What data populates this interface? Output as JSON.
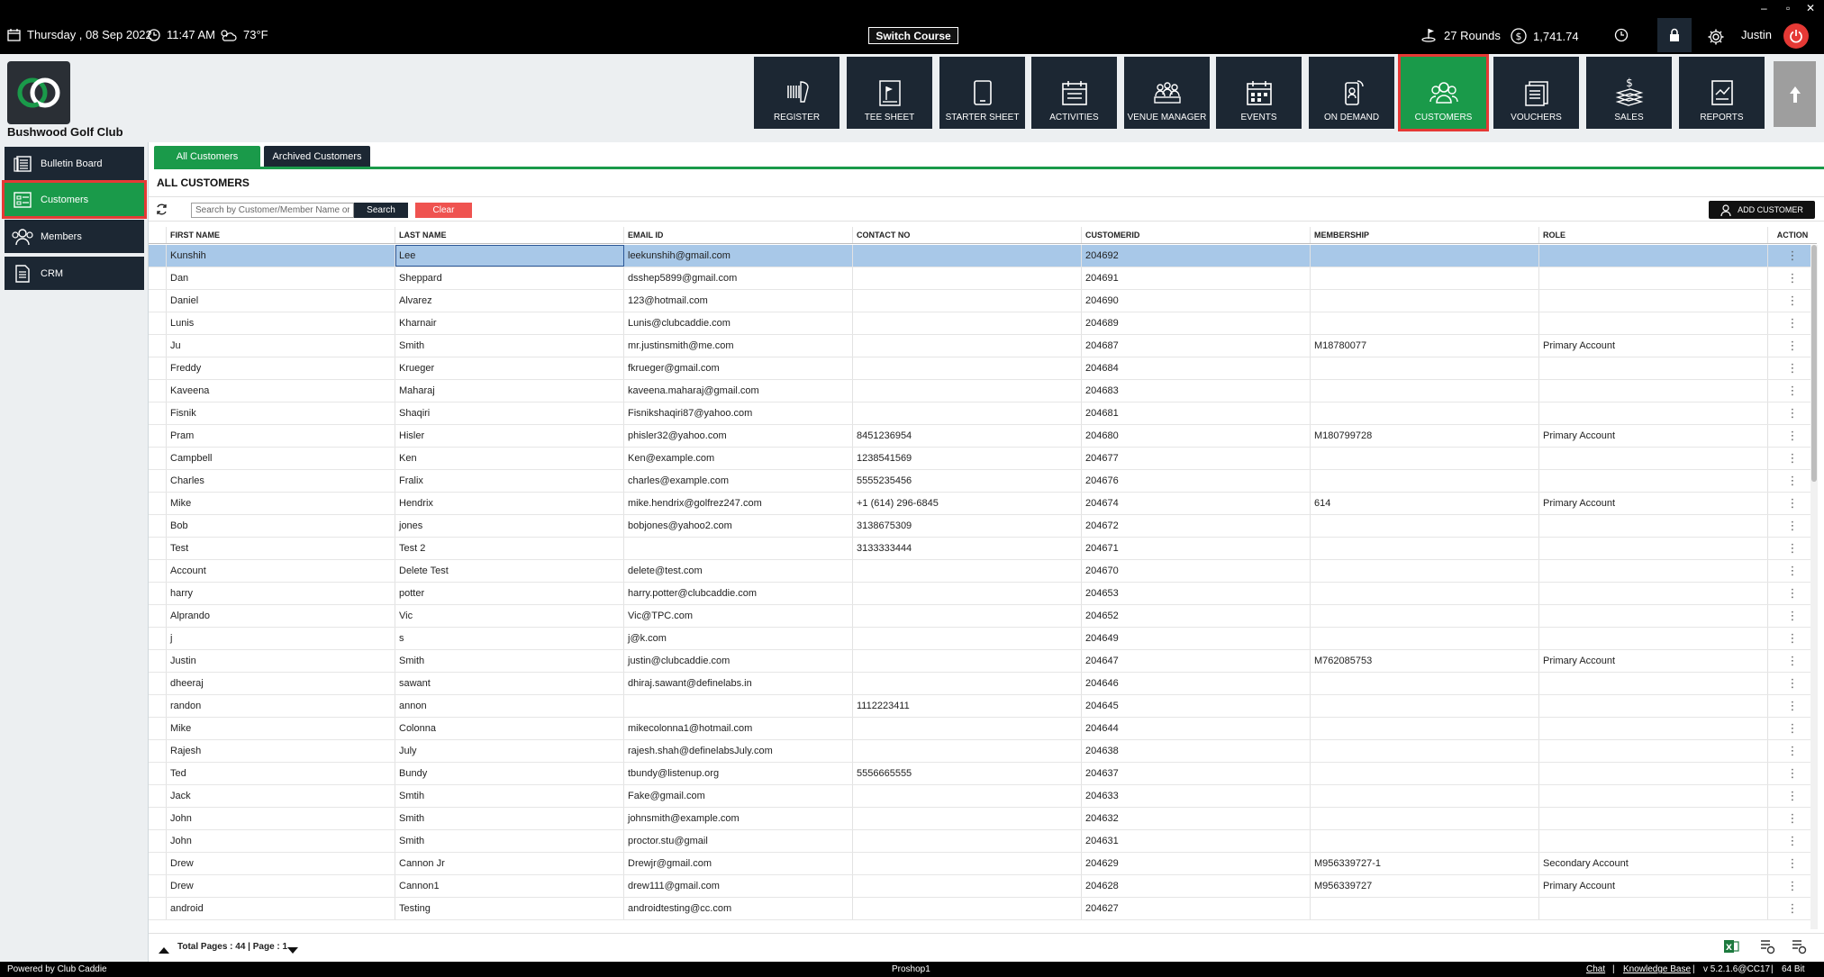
{
  "topbar": {
    "date": "Thursday ,  08 Sep 2022",
    "time": "11:47 AM",
    "weather": "73°F",
    "switch_course": "Switch Course",
    "rounds": "27 Rounds",
    "balance": "1,741.74",
    "user": "Justin",
    "window_controls": [
      "–",
      "▫",
      "✕"
    ]
  },
  "header": {
    "club_name": "Bushwood Golf Club",
    "nav": [
      {
        "label": "REGISTER",
        "icon": "barcode-scanner-icon"
      },
      {
        "label": "TEE SHEET",
        "icon": "tee-sheet-icon"
      },
      {
        "label": "STARTER SHEET",
        "icon": "tablet-icon"
      },
      {
        "label": "ACTIVITIES",
        "icon": "calendar-icon"
      },
      {
        "label": "VENUE MANAGER",
        "icon": "venue-icon"
      },
      {
        "label": "EVENTS",
        "icon": "events-calendar-icon"
      },
      {
        "label": "ON DEMAND",
        "icon": "mobile-icon"
      },
      {
        "label": "CUSTOMERS",
        "icon": "customers-icon"
      },
      {
        "label": "VOUCHERS",
        "icon": "vouchers-icon"
      },
      {
        "label": "SALES",
        "icon": "sales-icon"
      },
      {
        "label": "REPORTS",
        "icon": "reports-icon"
      }
    ],
    "active_nav": "CUSTOMERS"
  },
  "sidebar": {
    "items": [
      {
        "label": "Bulletin Board",
        "icon": "bulletin-icon"
      },
      {
        "label": "Customers",
        "icon": "customers-list-icon"
      },
      {
        "label": "Members",
        "icon": "members-icon"
      },
      {
        "label": "CRM",
        "icon": "crm-icon"
      }
    ],
    "active": "Customers"
  },
  "main": {
    "tabs": [
      "All Customers",
      "Archived Customers"
    ],
    "section_title": "ALL CUSTOMERS",
    "search_placeholder": "Search by Customer/Member Name or Id",
    "search_label": "Search",
    "clear_label": "Clear",
    "add_customer_label": "ADD CUSTOMER",
    "columns": [
      "FIRST NAME",
      "LAST NAME",
      "EMAIL ID",
      "CONTACT NO",
      "CUSTOMERID",
      "MEMBERSHIP",
      "ROLE",
      "ACTION"
    ],
    "rows": [
      [
        "Kunshih",
        "Lee",
        "leekunshih@gmail.com",
        "",
        "204692",
        "",
        ""
      ],
      [
        "Dan",
        "Sheppard",
        "dsshep5899@gmail.com",
        "",
        "204691",
        "",
        ""
      ],
      [
        "Daniel",
        "Alvarez",
        "123@hotmail.com",
        "",
        "204690",
        "",
        ""
      ],
      [
        "Lunis",
        "Kharnair",
        "Lunis@clubcaddie.com",
        "",
        "204689",
        "",
        ""
      ],
      [
        "Ju",
        "Smith",
        "mr.justinsmith@me.com",
        "",
        "204687",
        "M18780077",
        "Primary Account"
      ],
      [
        "Freddy",
        "Krueger",
        "fkrueger@gmail.com",
        "",
        "204684",
        "",
        ""
      ],
      [
        "Kaveena",
        "Maharaj",
        "kaveena.maharaj@gmail.com",
        "",
        "204683",
        "",
        ""
      ],
      [
        "Fisnik",
        "Shaqiri",
        "Fisnikshaqiri87@yahoo.com",
        "",
        "204681",
        "",
        ""
      ],
      [
        "Pram",
        "Hisler",
        "phisler32@yahoo.com",
        "8451236954",
        "204680",
        "M180799728",
        "Primary Account"
      ],
      [
        "Campbell",
        "Ken",
        "Ken@example.com",
        "1238541569",
        "204677",
        "",
        ""
      ],
      [
        "Charles",
        "Fralix",
        "charles@example.com",
        "5555235456",
        "204676",
        "",
        ""
      ],
      [
        "Mike",
        "Hendrix",
        "mike.hendrix@golfrez247.com",
        "+1 (614) 296-6845",
        "204674",
        "614",
        "Primary Account"
      ],
      [
        "Bob",
        "jones",
        "bobjones@yahoo2.com",
        "3138675309",
        "204672",
        "",
        ""
      ],
      [
        "Test",
        "Test 2",
        "",
        "3133333444",
        "204671",
        "",
        ""
      ],
      [
        "Account",
        "Delete Test",
        "delete@test.com",
        "",
        "204670",
        "",
        ""
      ],
      [
        "harry",
        "potter",
        "harry.potter@clubcaddie.com",
        "",
        "204653",
        "",
        ""
      ],
      [
        "Alprando",
        "Vic",
        "Vic@TPC.com",
        "",
        "204652",
        "",
        ""
      ],
      [
        "j",
        "s",
        "j@k.com",
        "",
        "204649",
        "",
        ""
      ],
      [
        "Justin",
        "Smith",
        "justin@clubcaddie.com",
        "",
        "204647",
        "M762085753",
        "Primary Account"
      ],
      [
        "dheeraj",
        "sawant",
        "dhiraj.sawant@definelabs.in",
        "",
        "204646",
        "",
        ""
      ],
      [
        "randon",
        "annon",
        "",
        "1112223411",
        "204645",
        "",
        ""
      ],
      [
        "Mike",
        "Colonna",
        "mikecolonna1@hotmail.com",
        "",
        "204644",
        "",
        ""
      ],
      [
        "Rajesh",
        "July",
        "rajesh.shah@definelabsJuly.com",
        "",
        "204638",
        "",
        ""
      ],
      [
        "Ted",
        "Bundy",
        "tbundy@listenup.org",
        "5556665555",
        "204637",
        "",
        ""
      ],
      [
        "Jack",
        "Smtih",
        "Fake@gmail.com",
        "",
        "204633",
        "",
        ""
      ],
      [
        "John",
        "Smith",
        "johnsmith@example.com",
        "",
        "204632",
        "",
        ""
      ],
      [
        "John",
        "Smith",
        "proctor.stu@gmail",
        "",
        "204631",
        "",
        ""
      ],
      [
        "Drew",
        "Cannon Jr",
        "Drewjr@gmail.com",
        "",
        "204629",
        "M956339727-1",
        "Secondary Account"
      ],
      [
        "Drew",
        "Cannon1",
        "drew111@gmail.com",
        "",
        "204628",
        "M956339727",
        "Primary Account"
      ],
      [
        "android",
        "Testing",
        "androidtesting@cc.com",
        "",
        "204627",
        "",
        ""
      ]
    ],
    "selected_row": 0,
    "action_glyph": "⋮",
    "pager": "Total Pages : 44 | Page : 1"
  },
  "statusbar": {
    "left": "Powered by Club Caddie",
    "center": "Proshop1",
    "chat": "Chat",
    "sep1": "|",
    "kb": "Knowledge Base",
    "sep2": "|",
    "version": "v 5.2.1.6@CC17",
    "sep3": "|",
    "bits": "64 Bit"
  },
  "colors": {
    "accent_green": "#1a9a4a",
    "nav_dark": "#1c2733",
    "highlight_red": "#e53935",
    "selected_row": "#a8c8e8"
  }
}
